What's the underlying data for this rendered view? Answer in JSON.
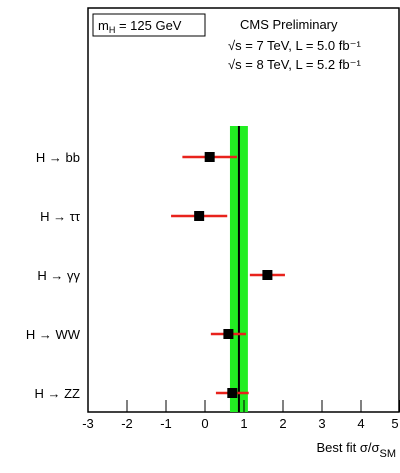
{
  "chart_data": {
    "type": "errorbar",
    "mass_label": {
      "main": "m",
      "sub": "H",
      "rest": " = 125 GeV"
    },
    "title": "CMS Preliminary",
    "subtitle_lines": [
      "√s = 7 TeV, L = 5.0 fb⁻¹",
      "√s = 8 TeV, L = 5.2 fb⁻¹"
    ],
    "x_label": {
      "main": "Best fit σ/σ",
      "sub": "SM"
    },
    "categories": [
      "H → bb",
      "H → ττ",
      "H → γγ",
      "H → WW",
      "H → ZZ"
    ],
    "values": [
      0.12,
      -0.15,
      1.6,
      0.6,
      0.7
    ],
    "errors": [
      0.7,
      0.72,
      0.45,
      0.45,
      0.42
    ],
    "point_color": "#000000",
    "error_color": "#e8221c",
    "combined": {
      "value": 0.87,
      "error": 0.23,
      "color": "#22ee22"
    },
    "xlim": [
      -3,
      5
    ],
    "xticks": [
      -3,
      -2,
      -1,
      0,
      1,
      2,
      3,
      4,
      5
    ]
  }
}
